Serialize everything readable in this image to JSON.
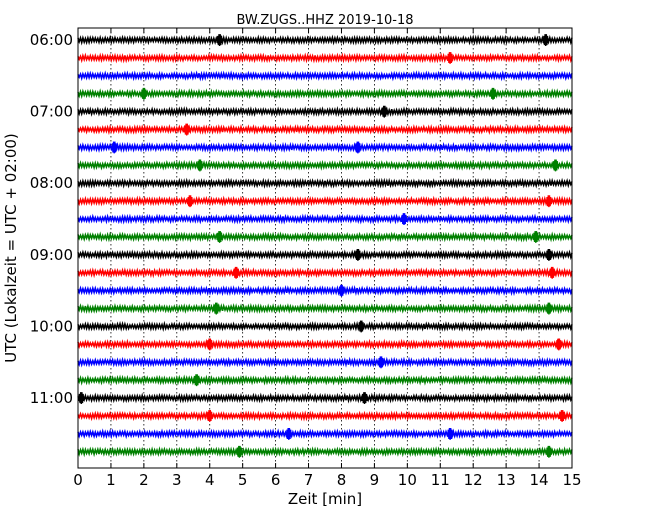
{
  "chart_data": {
    "type": "line",
    "title": "BW.ZUGS..HHZ 2019-10-18",
    "xlabel": "Zeit  [min]",
    "ylabel": "UTC (Lokalzeit = UTC + 02:00)",
    "xlim": [
      0,
      15
    ],
    "x_ticks": [
      "0",
      "1",
      "2",
      "3",
      "4",
      "5",
      "6",
      "7",
      "8",
      "9",
      "10",
      "11",
      "12",
      "13",
      "14",
      "15"
    ],
    "y_ticks": [
      "06:00",
      "07:00",
      "08:00",
      "09:00",
      "10:00",
      "11:00"
    ],
    "grid": "vertical dotted",
    "trace_colors": [
      "#000000",
      "#ff0000",
      "#0000ff",
      "#008000"
    ],
    "traces": [
      {
        "start": "06:00",
        "events": [
          4.3,
          14.2
        ]
      },
      {
        "start": "06:15",
        "events": [
          11.3
        ]
      },
      {
        "start": "06:30",
        "events": []
      },
      {
        "start": "06:45",
        "events": [
          2.0,
          12.6
        ]
      },
      {
        "start": "07:00",
        "events": [
          9.3
        ]
      },
      {
        "start": "07:15",
        "events": [
          3.3
        ]
      },
      {
        "start": "07:30",
        "events": [
          1.1,
          8.5
        ]
      },
      {
        "start": "07:45",
        "events": [
          3.7,
          14.5
        ]
      },
      {
        "start": "08:00",
        "events": []
      },
      {
        "start": "08:15",
        "events": [
          3.4,
          14.3
        ]
      },
      {
        "start": "08:30",
        "events": [
          9.9
        ]
      },
      {
        "start": "08:45",
        "events": [
          4.3,
          13.9
        ]
      },
      {
        "start": "09:00",
        "events": [
          8.5,
          14.3
        ]
      },
      {
        "start": "09:15",
        "events": [
          4.8,
          14.4
        ]
      },
      {
        "start": "09:30",
        "events": [
          8.0
        ]
      },
      {
        "start": "09:45",
        "events": [
          4.2,
          14.3
        ]
      },
      {
        "start": "10:00",
        "events": [
          8.6
        ]
      },
      {
        "start": "10:15",
        "events": [
          4.0,
          14.6
        ]
      },
      {
        "start": "10:30",
        "events": [
          9.2
        ]
      },
      {
        "start": "10:45",
        "events": [
          3.6
        ]
      },
      {
        "start": "11:00",
        "events": [
          0.1,
          8.7
        ]
      },
      {
        "start": "11:15",
        "events": [
          4.0,
          14.7
        ]
      },
      {
        "start": "11:30",
        "events": [
          6.4,
          11.3
        ]
      },
      {
        "start": "11:45",
        "events": [
          4.9,
          14.3
        ]
      }
    ]
  }
}
